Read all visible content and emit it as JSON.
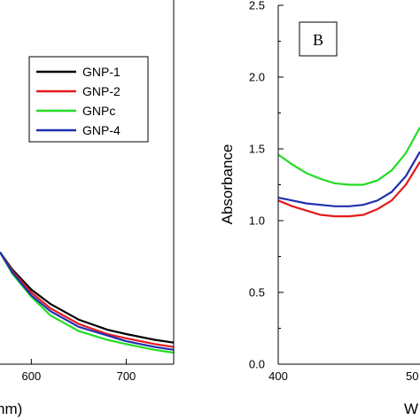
{
  "chart_data": [
    {
      "type": "line",
      "panel": "left",
      "xlabel": "nm)",
      "xlim": [
        567,
        750
      ],
      "ylim": [
        0,
        2.5
      ],
      "x_ticks": [
        600,
        700
      ],
      "y_ticks": [],
      "legend": {
        "placement": "top-right"
      },
      "grid": false,
      "series": [
        {
          "name": "GNP-1",
          "color": "#000000",
          "x": [
            567,
            580,
            600,
            620,
            650,
            680,
            700,
            730,
            750
          ],
          "y": [
            0.78,
            0.66,
            0.52,
            0.42,
            0.31,
            0.24,
            0.21,
            0.17,
            0.15
          ]
        },
        {
          "name": "GNP-2",
          "color": "#e41a1c",
          "x": [
            567,
            580,
            600,
            620,
            650,
            680,
            700,
            730,
            750
          ],
          "y": [
            0.78,
            0.65,
            0.5,
            0.39,
            0.28,
            0.21,
            0.18,
            0.14,
            0.12
          ]
        },
        {
          "name": "GNPc",
          "color": "#22dd22",
          "x": [
            567,
            580,
            600,
            620,
            650,
            680,
            700,
            730,
            750
          ],
          "y": [
            0.78,
            0.63,
            0.47,
            0.34,
            0.23,
            0.17,
            0.14,
            0.1,
            0.08
          ]
        },
        {
          "name": "GNP-4",
          "color": "#1f2fb0",
          "x": [
            567,
            580,
            600,
            620,
            650,
            680,
            700,
            730,
            750
          ],
          "y": [
            0.78,
            0.64,
            0.48,
            0.37,
            0.26,
            0.2,
            0.16,
            0.12,
            0.1
          ]
        }
      ]
    },
    {
      "type": "line",
      "panel": "right",
      "panel_label": "B",
      "ylabel": "Absorbance",
      "xlabel": "W",
      "xlim": [
        400,
        500
      ],
      "ylim": [
        0,
        2.5
      ],
      "x_ticks": [
        400
      ],
      "x_tick_partial": "50",
      "y_ticks": [
        0.0,
        0.5,
        1.0,
        1.5,
        2.0,
        2.5
      ],
      "y_tick_labels": [
        "0.0",
        "0.5",
        "1.0",
        "1.5",
        "2.0",
        "2.5"
      ],
      "grid": false,
      "series": [
        {
          "color": "#22dd22",
          "x": [
            400,
            410,
            420,
            430,
            440,
            450,
            460,
            470,
            480,
            490,
            500
          ],
          "y": [
            1.46,
            1.39,
            1.33,
            1.29,
            1.26,
            1.25,
            1.25,
            1.28,
            1.35,
            1.47,
            1.65
          ]
        },
        {
          "color": "#1f2fb0",
          "x": [
            400,
            410,
            420,
            430,
            440,
            450,
            460,
            470,
            480,
            490,
            500
          ],
          "y": [
            1.16,
            1.14,
            1.12,
            1.11,
            1.1,
            1.1,
            1.11,
            1.14,
            1.2,
            1.31,
            1.48
          ]
        },
        {
          "color": "#e41a1c",
          "x": [
            400,
            410,
            420,
            430,
            440,
            450,
            460,
            470,
            480,
            490,
            500
          ],
          "y": [
            1.14,
            1.1,
            1.07,
            1.04,
            1.03,
            1.03,
            1.04,
            1.08,
            1.14,
            1.25,
            1.41
          ]
        }
      ]
    }
  ]
}
